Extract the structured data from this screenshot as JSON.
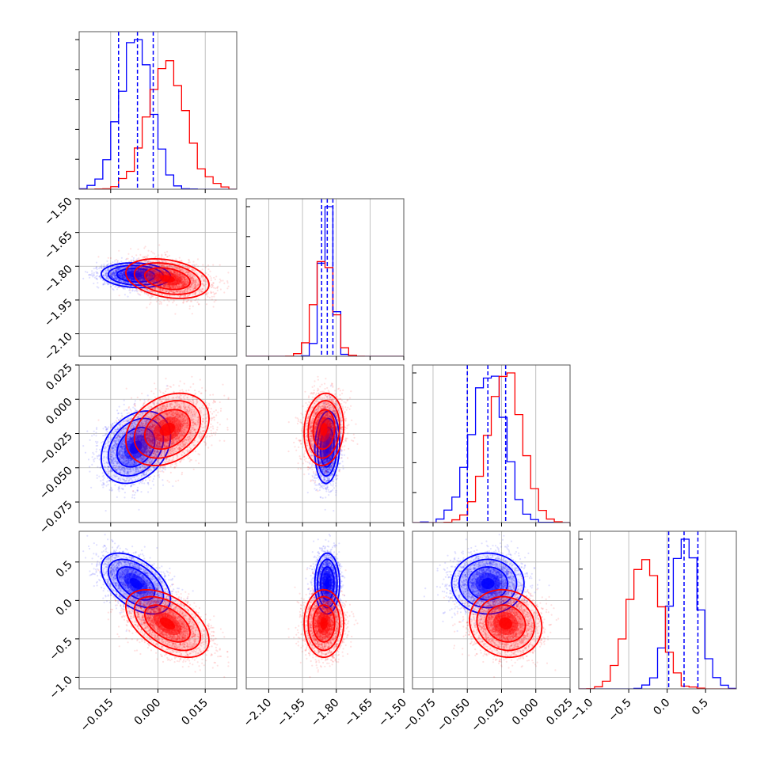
{
  "chart_data": {
    "type": "corner",
    "parameters": [
      {
        "range": [
          -0.025,
          0.025
        ],
        "ticks": [
          -0.015,
          0.0,
          0.015
        ],
        "tick_labels": [
          "−0.015",
          "0.000",
          "0.015"
        ]
      },
      {
        "range": [
          -2.2,
          -1.5
        ],
        "ticks": [
          -2.1,
          -1.95,
          -1.8,
          -1.65,
          -1.5
        ],
        "tick_labels": [
          "−2.10",
          "−1.95",
          "−1.80",
          "−1.65",
          "−1.50"
        ]
      },
      {
        "range": [
          -0.09,
          0.025
        ],
        "ticks": [
          -0.075,
          -0.05,
          -0.025,
          0.0,
          0.025
        ],
        "tick_labels": [
          "−0.075",
          "−0.050",
          "−0.025",
          "0.000",
          "0.025"
        ]
      },
      {
        "range": [
          -1.15,
          0.9
        ],
        "ticks": [
          -1.0,
          -0.5,
          0.0,
          0.5
        ],
        "tick_labels": [
          "−1.0",
          "−0.5",
          "0.0",
          "0.5"
        ]
      }
    ],
    "grid": true,
    "series": [
      {
        "color": "#0000ff",
        "means": [
          -0.007,
          -1.84,
          -0.035,
          0.22
        ],
        "sds": [
          0.005,
          0.025,
          0.012,
          0.18
        ],
        "corr": [
          [
            1,
            -0.1,
            0.3,
            -0.5
          ],
          [
            -0.1,
            1,
            0.1,
            0.0
          ],
          [
            0.3,
            0.1,
            1,
            0.0
          ],
          [
            -0.5,
            0.0,
            0.0,
            1
          ]
        ],
        "quantiles": [
          [
            -0.0125,
            -0.0065,
            -0.0015
          ],
          [
            -1.865,
            -1.84,
            -1.815
          ],
          [
            -0.05,
            -0.035,
            -0.022
          ],
          [
            0.02,
            0.22,
            0.4
          ]
        ]
      },
      {
        "color": "#ff0000",
        "means": [
          0.003,
          -1.855,
          -0.022,
          -0.3
        ],
        "sds": [
          0.006,
          0.04,
          0.012,
          0.2
        ],
        "corr": [
          [
            1,
            -0.3,
            0.3,
            -0.5
          ],
          [
            -0.3,
            1,
            0.1,
            0.0
          ],
          [
            0.3,
            0.1,
            1,
            -0.1
          ],
          [
            -0.5,
            0.0,
            -0.1,
            1
          ]
        ]
      }
    ]
  }
}
